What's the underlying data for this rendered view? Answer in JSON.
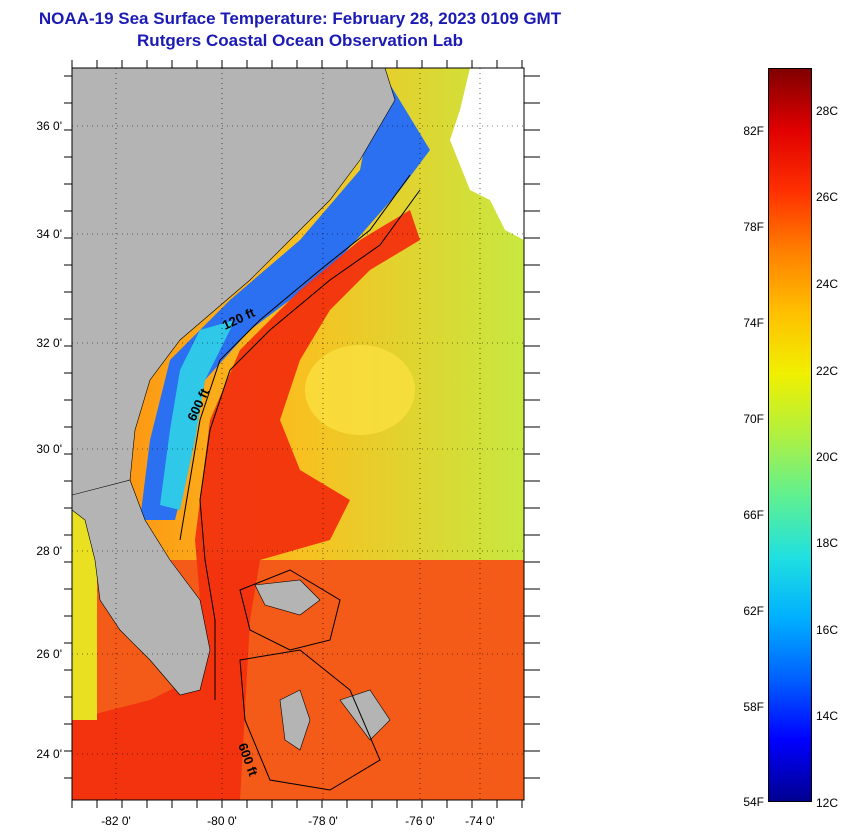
{
  "title": {
    "line1": "NOAA-19 Sea Surface Temperature:  February 28, 2023 0109 GMT",
    "line2": "Rutgers Coastal Ocean Observation Lab"
  },
  "map": {
    "lon_labels": [
      "-82 0'",
      "-80 0'",
      "-78 0'",
      "-76 0'",
      "-74 0'"
    ],
    "lat_labels": [
      "36 0'",
      "34 0'",
      "32 0'",
      "30 0'",
      "28 0'",
      "26 0'",
      "24 0'"
    ],
    "contour_labels": [
      "120 ft",
      "600 ft",
      "600 ft"
    ],
    "colors": {
      "land": "#b4b4b4",
      "gulfstream": "#f2300e",
      "shelf_cold": "#1e5af0",
      "offshore": "#f5b41e"
    }
  },
  "colorbar": {
    "fahrenheit": [
      "82F",
      "78F",
      "74F",
      "70F",
      "66F",
      "62F",
      "58F",
      "54F"
    ],
    "celsius": [
      "28C",
      "26C",
      "24C",
      "22C",
      "20C",
      "18C",
      "16C",
      "14C",
      "12C"
    ],
    "colors_bottom_to_top": [
      "#000090",
      "#0000ff",
      "#0060ff",
      "#00b0ff",
      "#20e0e0",
      "#60f090",
      "#b0f040",
      "#f0f000",
      "#ffc000",
      "#ff8000",
      "#ff3000",
      "#e00000",
      "#800000"
    ]
  }
}
